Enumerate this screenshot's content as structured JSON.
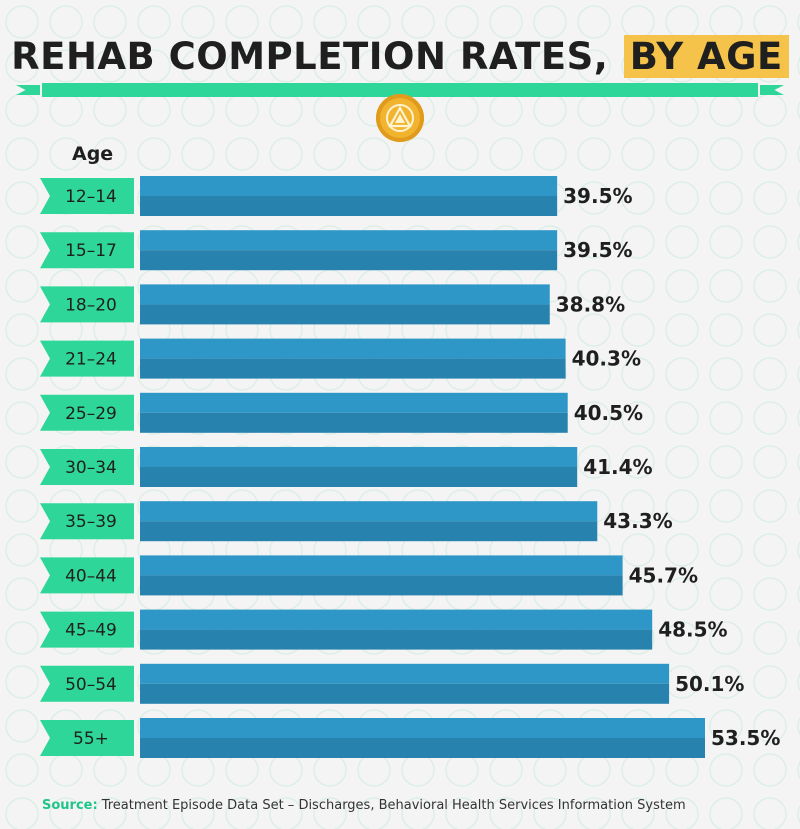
{
  "title": {
    "main": "REHAB COMPLETION RATES,",
    "highlight": "BY AGE"
  },
  "axis_label": "Age",
  "source": {
    "label": "Source:",
    "text": "Treatment Episode Data Set – Discharges, Behavioral Health Services Information System"
  },
  "colors": {
    "bar": "#2f97c8",
    "bar_dark": "#2882ae",
    "tag": "#2fd69a",
    "highlight": "#f6c34a",
    "badge": "#f2b32e"
  },
  "chart_data": {
    "type": "bar",
    "orientation": "horizontal",
    "categories": [
      "12–14",
      "15–17",
      "18–20",
      "21–24",
      "25–29",
      "30–34",
      "35–39",
      "40–44",
      "45–49",
      "50–54",
      "55+"
    ],
    "values": [
      39.5,
      39.5,
      38.8,
      40.3,
      40.5,
      41.4,
      43.3,
      45.7,
      48.5,
      50.1,
      53.5
    ],
    "value_labels": [
      "39.5%",
      "39.5%",
      "38.8%",
      "40.3%",
      "40.5%",
      "41.4%",
      "43.3%",
      "45.7%",
      "48.5%",
      "50.1%",
      "53.5%"
    ],
    "title": "REHAB COMPLETION RATES, BY AGE",
    "ylabel": "Age",
    "xlim": [
      0,
      53.5
    ],
    "grid": false
  }
}
